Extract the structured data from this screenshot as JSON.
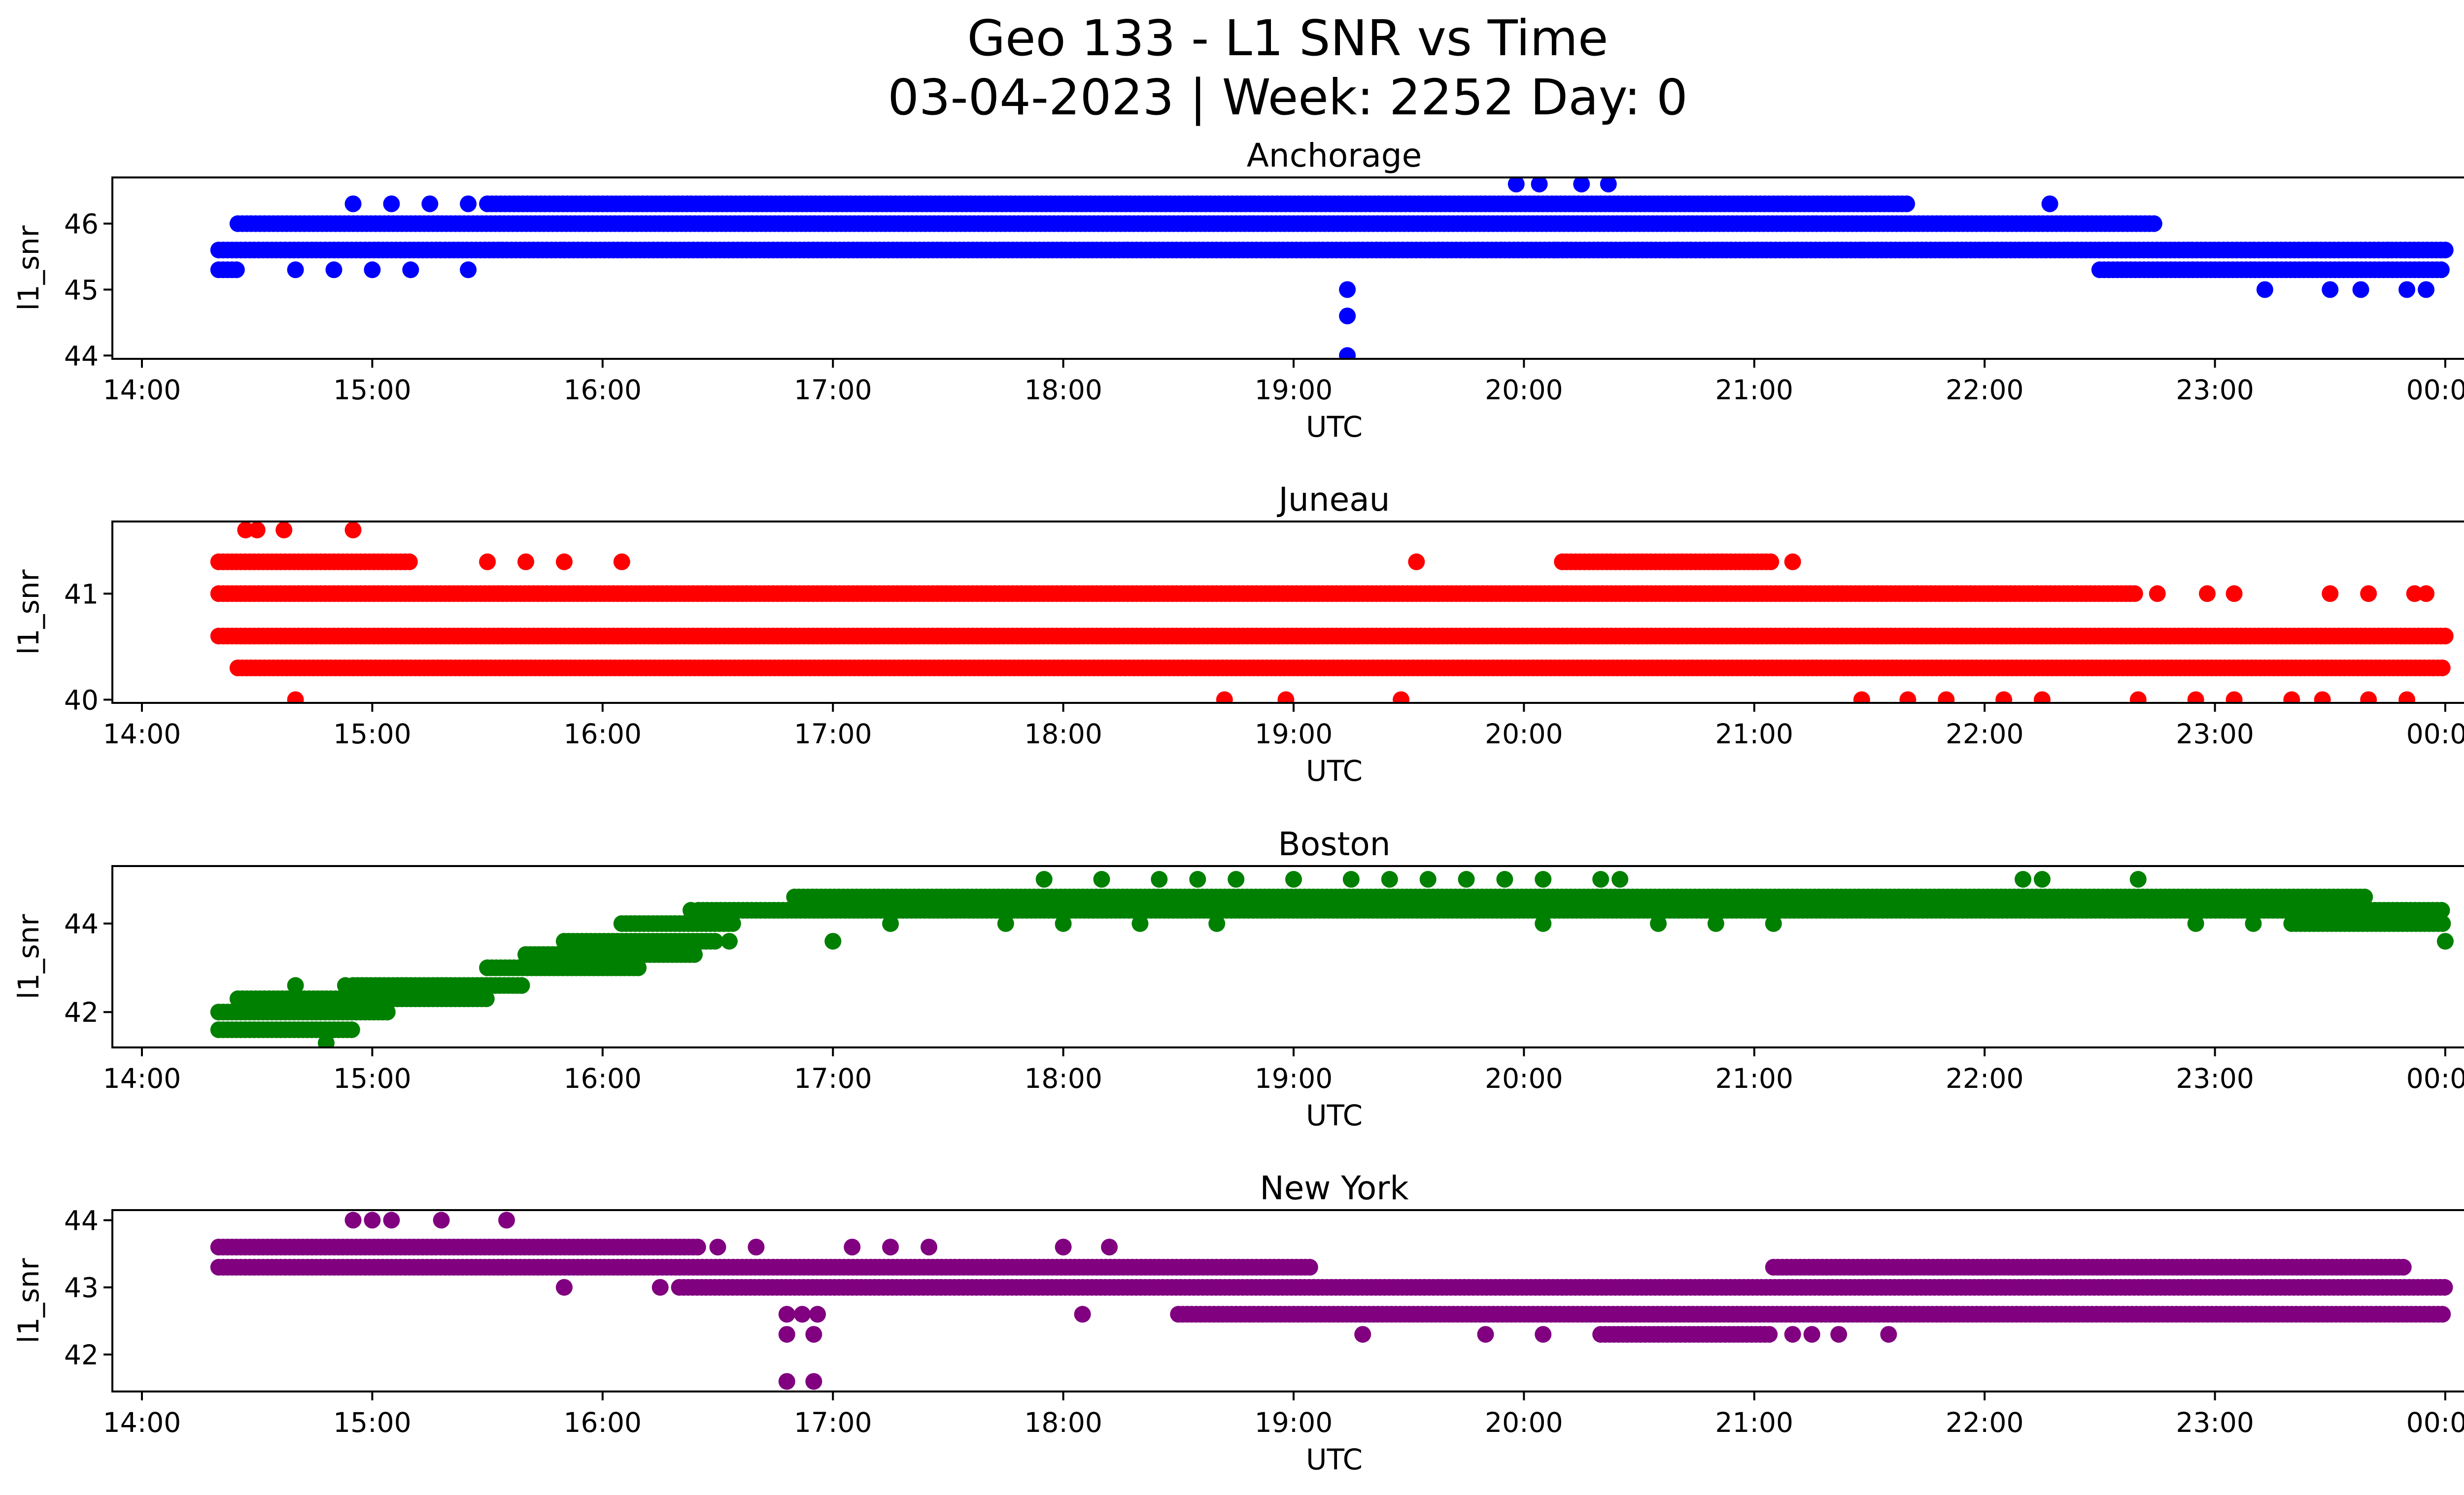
{
  "title_line1": "Geo 133 - L1 SNR vs Time",
  "title_line2": "03-04-2023 | Week: 2252 Day: 0",
  "chart_data": [
    {
      "type": "scatter",
      "title": "Anchorage",
      "xlabel": "UTC",
      "ylabel": "l1_snr",
      "color": "#0000ff",
      "xlim": [
        "14:00",
        "00:00"
      ],
      "ylim": [
        43.95,
        46.7
      ],
      "yticks": [
        44,
        45,
        46
      ],
      "xticks": [
        "14:00",
        "15:00",
        "16:00",
        "17:00",
        "18:00",
        "19:00",
        "20:00",
        "21:00",
        "22:00",
        "23:00",
        "00:00"
      ],
      "bands": [
        {
          "y": 45.6,
          "from": "14:20",
          "to": "00:00"
        },
        {
          "y": 46.0,
          "from": "14:25",
          "to": "22:45"
        },
        {
          "y": 46.3,
          "from": "15:30",
          "to": "21:40"
        },
        {
          "y": 45.3,
          "from": "22:30",
          "to": "00:00"
        },
        {
          "y": 45.3,
          "from": "14:20",
          "to": "14:25"
        }
      ],
      "points": [
        [
          "14:55",
          46.3
        ],
        [
          "15:05",
          46.3
        ],
        [
          "15:15",
          46.3
        ],
        [
          "15:25",
          46.3
        ],
        [
          "14:40",
          45.3
        ],
        [
          "14:50",
          45.3
        ],
        [
          "15:00",
          45.3
        ],
        [
          "15:10",
          45.3
        ],
        [
          "15:25",
          45.3
        ],
        [
          "19:14",
          45.0
        ],
        [
          "19:14",
          44.6
        ],
        [
          "19:14",
          44.0
        ],
        [
          "19:58",
          46.6
        ],
        [
          "20:04",
          46.6
        ],
        [
          "20:15",
          46.6
        ],
        [
          "20:22",
          46.6
        ],
        [
          "20:08",
          45.6
        ],
        [
          "21:28",
          45.6
        ],
        [
          "20:40",
          45.6
        ],
        [
          "20:47",
          45.6
        ],
        [
          "22:17",
          46.3
        ],
        [
          "23:13",
          45.0
        ],
        [
          "23:30",
          45.0
        ],
        [
          "23:38",
          45.0
        ],
        [
          "23:45",
          45.6
        ],
        [
          "23:50",
          45.0
        ],
        [
          "23:55",
          45.0
        ]
      ]
    },
    {
      "type": "scatter",
      "title": "Juneau",
      "xlabel": "UTC",
      "ylabel": "l1_snr",
      "color": "#ff0000",
      "xlim": [
        "14:00",
        "00:00"
      ],
      "ylim": [
        39.97,
        41.68
      ],
      "yticks": [
        40,
        41
      ],
      "xticks": [
        "14:00",
        "15:00",
        "16:00",
        "17:00",
        "18:00",
        "19:00",
        "20:00",
        "21:00",
        "22:00",
        "23:00",
        "00:00"
      ],
      "bands": [
        {
          "y": 40.6,
          "from": "14:20",
          "to": "00:00"
        },
        {
          "y": 41.0,
          "from": "14:20",
          "to": "22:40"
        },
        {
          "y": 40.3,
          "from": "14:25",
          "to": "00:00"
        },
        {
          "y": 41.3,
          "from": "14:20",
          "to": "15:10"
        },
        {
          "y": 41.3,
          "from": "20:10",
          "to": "21:05"
        }
      ],
      "points": [
        [
          "14:27",
          41.6
        ],
        [
          "14:30",
          41.6
        ],
        [
          "14:37",
          41.6
        ],
        [
          "14:55",
          41.6
        ],
        [
          "14:40",
          40.0
        ],
        [
          "15:50",
          41.3
        ],
        [
          "16:05",
          41.3
        ],
        [
          "15:30",
          41.3
        ],
        [
          "15:40",
          41.3
        ],
        [
          "18:42",
          40.0
        ],
        [
          "18:58",
          40.0
        ],
        [
          "19:28",
          40.0
        ],
        [
          "19:32",
          41.3
        ],
        [
          "21:10",
          41.3
        ],
        [
          "21:28",
          40.0
        ],
        [
          "21:40",
          40.0
        ],
        [
          "21:50",
          40.0
        ],
        [
          "22:05",
          40.0
        ],
        [
          "22:15",
          40.0
        ],
        [
          "22:40",
          40.0
        ],
        [
          "22:55",
          40.0
        ],
        [
          "23:05",
          40.0
        ],
        [
          "23:20",
          40.0
        ],
        [
          "23:28",
          40.0
        ],
        [
          "23:40",
          40.0
        ],
        [
          "23:50",
          40.0
        ],
        [
          "23:30",
          41.0
        ],
        [
          "23:40",
          41.0
        ],
        [
          "23:52",
          41.0
        ],
        [
          "22:58",
          41.0
        ],
        [
          "23:05",
          41.0
        ],
        [
          "22:45",
          41.0
        ],
        [
          "23:55",
          41.0
        ]
      ]
    },
    {
      "type": "scatter",
      "title": "Boston",
      "xlabel": "UTC",
      "ylabel": "l1_snr",
      "color": "#008000",
      "xlim": [
        "14:00",
        "00:00"
      ],
      "ylim": [
        41.2,
        45.3
      ],
      "yticks": [
        42,
        44
      ],
      "xticks": [
        "14:00",
        "15:00",
        "16:00",
        "17:00",
        "18:00",
        "19:00",
        "20:00",
        "21:00",
        "22:00",
        "23:00",
        "00:00"
      ],
      "bands": [
        {
          "y": 41.6,
          "from": "14:20",
          "to": "14:55"
        },
        {
          "y": 42.0,
          "from": "14:20",
          "to": "15:05"
        },
        {
          "y": 42.3,
          "from": "14:25",
          "to": "15:30"
        },
        {
          "y": 42.6,
          "from": "14:55",
          "to": "15:40"
        },
        {
          "y": 43.0,
          "from": "15:30",
          "to": "16:10"
        },
        {
          "y": 43.3,
          "from": "15:40",
          "to": "16:25"
        },
        {
          "y": 43.6,
          "from": "15:50",
          "to": "16:30"
        },
        {
          "y": 44.0,
          "from": "16:05",
          "to": "16:35"
        },
        {
          "y": 44.3,
          "from": "16:25",
          "to": "00:00"
        },
        {
          "y": 44.6,
          "from": "16:50",
          "to": "23:40"
        },
        {
          "y": 44.0,
          "from": "23:20",
          "to": "00:00"
        }
      ],
      "points": [
        [
          "14:48",
          41.3
        ],
        [
          "14:40",
          42.6
        ],
        [
          "14:53",
          42.6
        ],
        [
          "17:00",
          43.6
        ],
        [
          "16:33",
          43.6
        ],
        [
          "16:23",
          44.3
        ],
        [
          "17:55",
          45.0
        ],
        [
          "18:10",
          45.0
        ],
        [
          "18:25",
          45.0
        ],
        [
          "18:35",
          45.0
        ],
        [
          "18:45",
          45.0
        ],
        [
          "19:00",
          45.0
        ],
        [
          "19:15",
          45.0
        ],
        [
          "19:25",
          45.0
        ],
        [
          "19:35",
          45.0
        ],
        [
          "19:45",
          45.0
        ],
        [
          "19:55",
          45.0
        ],
        [
          "20:05",
          45.0
        ],
        [
          "20:20",
          45.0
        ],
        [
          "20:25",
          45.0
        ],
        [
          "22:10",
          45.0
        ],
        [
          "22:15",
          45.0
        ],
        [
          "22:40",
          45.0
        ],
        [
          "17:15",
          44.0
        ],
        [
          "17:45",
          44.0
        ],
        [
          "18:00",
          44.0
        ],
        [
          "18:20",
          44.0
        ],
        [
          "18:40",
          44.0
        ],
        [
          "20:05",
          44.0
        ],
        [
          "20:35",
          44.0
        ],
        [
          "20:50",
          44.0
        ],
        [
          "21:05",
          44.0
        ],
        [
          "22:55",
          44.0
        ],
        [
          "23:10",
          44.0
        ],
        [
          "00:00",
          43.6
        ]
      ]
    },
    {
      "type": "scatter",
      "title": "New York",
      "xlabel": "UTC",
      "ylabel": "l1_snr",
      "color": "#800080",
      "xlim": [
        "14:00",
        "00:00"
      ],
      "ylim": [
        41.45,
        44.15
      ],
      "yticks": [
        42,
        43,
        44
      ],
      "xticks": [
        "14:00",
        "15:00",
        "16:00",
        "17:00",
        "18:00",
        "19:00",
        "20:00",
        "21:00",
        "22:00",
        "23:00",
        "00:00"
      ],
      "bands": [
        {
          "y": 43.6,
          "from": "14:20",
          "to": "16:25"
        },
        {
          "y": 43.3,
          "from": "14:20",
          "to": "19:05"
        },
        {
          "y": 43.0,
          "from": "16:20",
          "to": "00:00"
        },
        {
          "y": 42.6,
          "from": "18:30",
          "to": "00:00"
        },
        {
          "y": 42.3,
          "from": "20:20",
          "to": "21:05"
        },
        {
          "y": 43.3,
          "from": "21:05",
          "to": "23:50"
        }
      ],
      "points": [
        [
          "14:55",
          44.0
        ],
        [
          "15:00",
          44.0
        ],
        [
          "15:05",
          44.0
        ],
        [
          "15:18",
          44.0
        ],
        [
          "15:35",
          44.0
        ],
        [
          "15:50",
          43.0
        ],
        [
          "16:15",
          43.0
        ],
        [
          "16:48",
          42.6
        ],
        [
          "16:52",
          42.6
        ],
        [
          "16:56",
          42.6
        ],
        [
          "16:48",
          42.3
        ],
        [
          "16:55",
          42.3
        ],
        [
          "16:48",
          41.6
        ],
        [
          "16:55",
          41.6
        ],
        [
          "16:30",
          43.6
        ],
        [
          "16:40",
          43.6
        ],
        [
          "17:05",
          43.6
        ],
        [
          "17:15",
          43.6
        ],
        [
          "17:25",
          43.6
        ],
        [
          "18:00",
          43.6
        ],
        [
          "18:12",
          43.6
        ],
        [
          "18:05",
          42.6
        ],
        [
          "19:18",
          42.3
        ],
        [
          "19:50",
          42.3
        ],
        [
          "20:05",
          42.3
        ],
        [
          "21:10",
          42.3
        ],
        [
          "21:15",
          42.3
        ],
        [
          "21:22",
          42.3
        ],
        [
          "21:35",
          42.3
        ]
      ]
    }
  ]
}
